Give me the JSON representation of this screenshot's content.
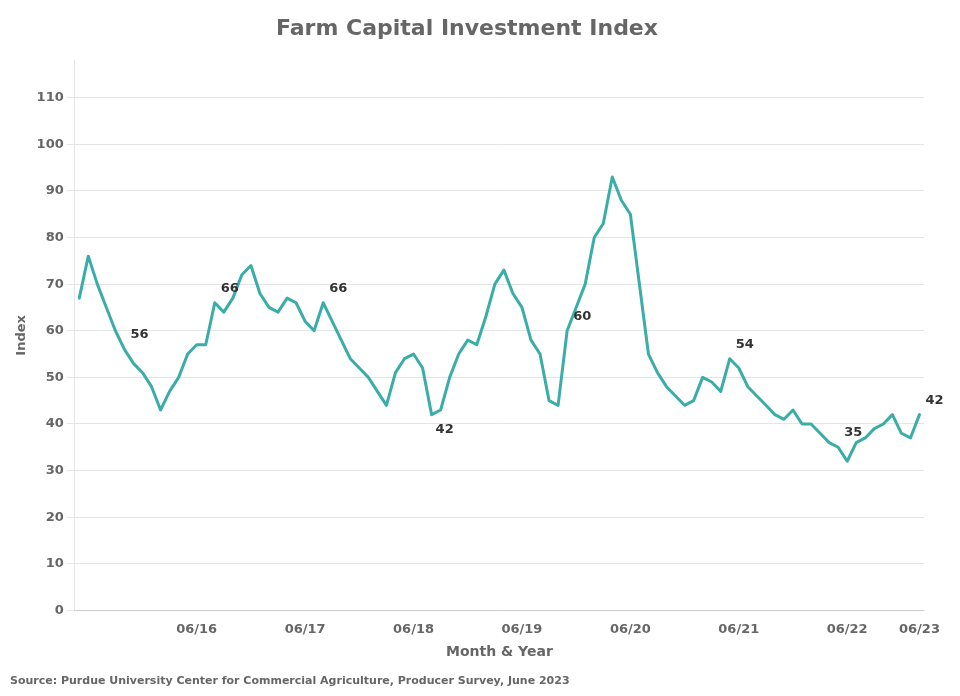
{
  "chart_data": {
    "type": "line",
    "title": "Farm Capital Investment Index",
    "xlabel": "Month & Year",
    "ylabel": "Index",
    "source": "Source: Purdue University Center for Commercial Agriculture, Producer Survey, June 2023",
    "color": "#3aada8",
    "categories": [
      null,
      null,
      null,
      null,
      null,
      null,
      null,
      null,
      null,
      null,
      null,
      null,
      null,
      "06/16",
      null,
      null,
      null,
      null,
      null,
      null,
      null,
      null,
      null,
      null,
      null,
      "06/17",
      null,
      null,
      null,
      null,
      null,
      null,
      null,
      null,
      null,
      null,
      null,
      "06/18",
      null,
      null,
      null,
      null,
      null,
      null,
      null,
      null,
      null,
      null,
      null,
      "06/19",
      null,
      null,
      null,
      null,
      null,
      null,
      null,
      null,
      null,
      null,
      null,
      "06/20",
      null,
      null,
      null,
      null,
      null,
      null,
      null,
      null,
      null,
      null,
      null,
      "06/21",
      null,
      null,
      null,
      null,
      null,
      null,
      null,
      null,
      null,
      null,
      null,
      "06/22",
      null,
      null,
      null,
      null,
      null,
      null,
      null,
      "06/23"
    ],
    "values": [
      67,
      76,
      70,
      65,
      60,
      56,
      53,
      51,
      48,
      43,
      47,
      50,
      55,
      57,
      57,
      66,
      64,
      67,
      72,
      74,
      68,
      65,
      64,
      67,
      66,
      62,
      60,
      66,
      62,
      58,
      54,
      52,
      50,
      47,
      44,
      51,
      54,
      55,
      52,
      42,
      43,
      50,
      55,
      58,
      57,
      63,
      70,
      73,
      68,
      65,
      58,
      55,
      45,
      44,
      60,
      65,
      70,
      80,
      83,
      93,
      88,
      85,
      70,
      55,
      51,
      48,
      46,
      44,
      45,
      50,
      49,
      47,
      54,
      52,
      48,
      46,
      44,
      42,
      41,
      43,
      40,
      40,
      38,
      36,
      35,
      32,
      36,
      37,
      39,
      40,
      42,
      38,
      37,
      42
    ],
    "annotations": [
      {
        "label": "56",
        "x": 5,
        "y": 56
      },
      {
        "label": "66",
        "x": 15,
        "y": 66
      },
      {
        "label": "66",
        "x": 27,
        "y": 66
      },
      {
        "label": "42",
        "x": 39,
        "y": 42
      },
      {
        "label": "60",
        "x": 54,
        "y": 60
      },
      {
        "label": "54",
        "x": 72,
        "y": 54
      },
      {
        "label": "35",
        "x": 84,
        "y": 35
      },
      {
        "label": "42",
        "x": 93,
        "y": 42
      }
    ],
    "ylim": [
      0,
      118
    ],
    "yticks": [
      0,
      10,
      20,
      30,
      40,
      50,
      60,
      70,
      80,
      90,
      100,
      110
    ],
    "grid": true
  }
}
